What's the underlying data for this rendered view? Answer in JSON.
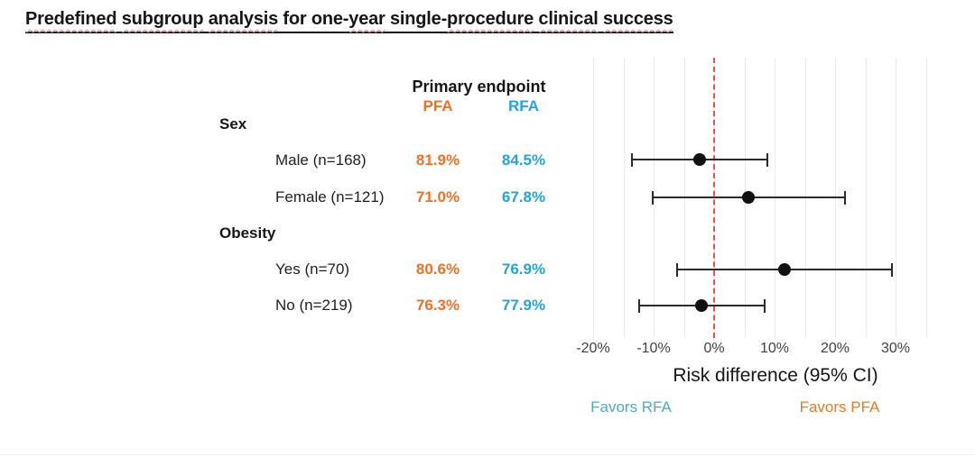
{
  "title": {
    "text": "Predefined subgroup analysis for one-year single-procedure clinical success",
    "words": [
      {
        "text": "Predefined",
        "wavy": true,
        "space": true
      },
      {
        "text": "subgroup",
        "wavy": true,
        "space": true
      },
      {
        "text": "analysis",
        "wavy": true,
        "space": true
      },
      {
        "text": "for",
        "wavy": false,
        "space": true
      },
      {
        "text": "one-",
        "wavy": false,
        "space": false
      },
      {
        "text": "year",
        "wavy": true,
        "space": true
      },
      {
        "text": "single-",
        "wavy": false,
        "space": false
      },
      {
        "text": "procedure",
        "wavy": true,
        "space": true
      },
      {
        "text": "clinical",
        "wavy": true,
        "space": true
      },
      {
        "text": "success",
        "wavy": true,
        "space": false
      }
    ]
  },
  "table": {
    "header": "Primary endpoint",
    "col_pfa": "PFA",
    "col_rfa": "RFA",
    "groups": [
      {
        "label": "Sex",
        "rows": [
          {
            "label": "Male (n=168)",
            "pfa": "81.9%",
            "rfa": "84.5%"
          },
          {
            "label": "Female (n=121)",
            "pfa": "71.0%",
            "rfa": "67.8%"
          }
        ]
      },
      {
        "label": "Obesity",
        "rows": [
          {
            "label": "Yes (n=70)",
            "pfa": "80.6%",
            "rfa": "76.9%"
          },
          {
            "label": "No (n=219)",
            "pfa": "76.3%",
            "rfa": "77.9%"
          }
        ]
      }
    ]
  },
  "chart_data": {
    "type": "scatter",
    "subtype": "forest-plot",
    "xlabel": "Risk difference (95% CI)",
    "x_ticks": [
      {
        "label": "-20%",
        "value": -20
      },
      {
        "label": "-10%",
        "value": -10
      },
      {
        "label": "0%",
        "value": 0
      },
      {
        "label": "10%",
        "value": 10
      },
      {
        "label": "20%",
        "value": 20
      },
      {
        "label": "30%",
        "value": 30
      }
    ],
    "x_grid_range": [
      -20,
      35
    ],
    "x_grid_step": 5,
    "grid": true,
    "reference_line": {
      "value": 0,
      "style": "dashed"
    },
    "rows": [
      {
        "group": "Sex",
        "label": "Male (n=168)",
        "pfa_pct": 81.9,
        "rfa_pct": 84.5,
        "estimate": -2.4,
        "ci_low": -13.6,
        "ci_high": 8.8
      },
      {
        "group": "Sex",
        "label": "Female (n=121)",
        "pfa_pct": 71.0,
        "rfa_pct": 67.8,
        "estimate": 5.7,
        "ci_low": -10.1,
        "ci_high": 21.6
      },
      {
        "group": "Obesity",
        "label": "Yes (n=70)",
        "pfa_pct": 80.6,
        "rfa_pct": 76.9,
        "estimate": 11.6,
        "ci_low": -6.1,
        "ci_high": 29.4
      },
      {
        "group": "Obesity",
        "label": "No (n=219)",
        "pfa_pct": 76.3,
        "rfa_pct": 77.9,
        "estimate": -2.1,
        "ci_low": -12.4,
        "ci_high": 8.4
      }
    ],
    "annotations": {
      "favors_left": "Favors RFA",
      "favors_right": "Favors PFA"
    }
  },
  "colors": {
    "pfa": "#F36F21",
    "rfa": "#25A3DC",
    "favors_rfa": "#4FA9C6",
    "favors_pfa": "#E87A22",
    "reference": "#F94B4B",
    "grid": "#EAEAEA",
    "point": "#111111",
    "axis_text": "#414141",
    "spellcheck": "#FB7E7E"
  }
}
